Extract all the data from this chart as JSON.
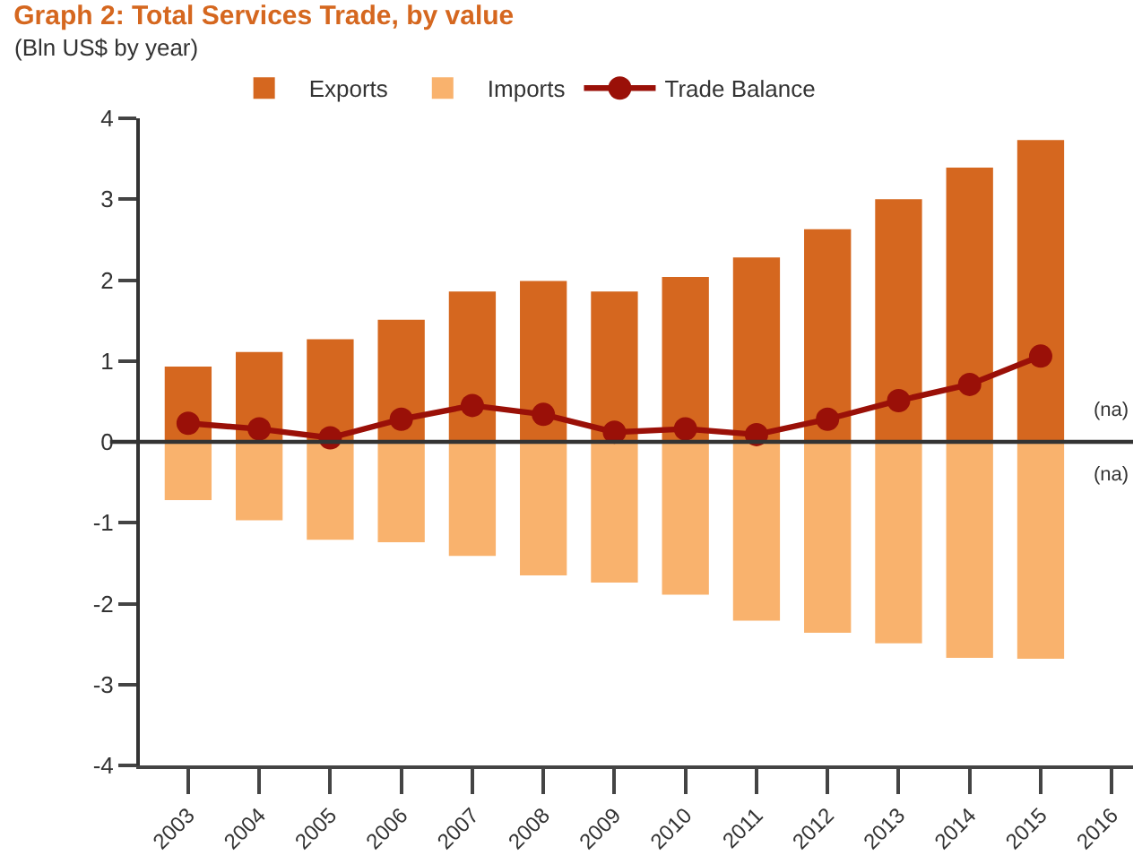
{
  "chart_data": {
    "type": "bar",
    "title": "Graph 2: Total Services Trade, by value",
    "ylabel": "(Bln US$ by year)",
    "categories": [
      "2003",
      "2004",
      "2005",
      "2006",
      "2007",
      "2008",
      "2009",
      "2010",
      "2011",
      "2012",
      "2013",
      "2014",
      "2015",
      "2016"
    ],
    "series": [
      {
        "name": "Exports",
        "color": "#d5671f",
        "values": [
          0.93,
          1.11,
          1.27,
          1.51,
          1.86,
          1.99,
          1.86,
          2.04,
          2.28,
          2.63,
          3.0,
          3.39,
          3.73,
          null
        ]
      },
      {
        "name": "Imports",
        "color": "#f9b26d",
        "values": [
          -0.72,
          -0.97,
          -1.21,
          -1.24,
          -1.41,
          -1.65,
          -1.74,
          -1.89,
          -2.21,
          -2.36,
          -2.49,
          -2.67,
          -2.68,
          null
        ]
      },
      {
        "name": "Trade Balance",
        "type": "line",
        "color": "#9a1008",
        "values": [
          0.23,
          0.16,
          0.05,
          0.28,
          0.45,
          0.34,
          0.12,
          0.16,
          0.09,
          0.28,
          0.51,
          0.71,
          1.06,
          null
        ]
      }
    ],
    "stacked": true,
    "marker": "circle",
    "line_style": "solid",
    "ylim": [
      -4,
      4
    ],
    "yticks": [
      -4,
      -3,
      -2,
      -1,
      0,
      1,
      2,
      3,
      4
    ],
    "legend": "top",
    "ref_lines": [
      {
        "axis": "y",
        "value": 0,
        "color": "#333333"
      }
    ],
    "annotations": [
      "(na)",
      "(na)"
    ]
  }
}
